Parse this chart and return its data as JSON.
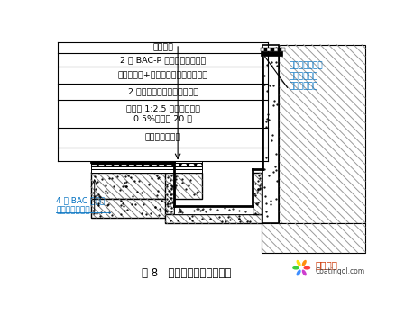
{
  "title": "图 8   裙楼屋面天沟防水构造",
  "label_rain": "雨水篦子",
  "label_bac_p": "2 厚 BAC-P 双面自粘防水卷材",
  "label_glass": "玻纤网格布+非固化橡胶沥青防水涂料",
  "label_2thick": "2 厚非固化橡胶沥青防水涂料",
  "label_cement": "天沟底 1:2.5 水泥砂浆找坡\n0.5%，最薄 20 厚",
  "label_steel": "钢筋混凝土天沟",
  "label_right": "收口压条固定，\n涂非固化橡胶\n沥青防水涂料",
  "label_bac4": "4 厚 BAC 耐根穿\n刺自粘防水卷材",
  "watermark_cn": "涂料在线",
  "watermark_en": "Coatingol.com",
  "blue": "#0070c0",
  "black": "#000000",
  "white": "#ffffff",
  "petal_colors": [
    "#ff3333",
    "#ff8800",
    "#ffdd00",
    "#33cc33",
    "#3388ff",
    "#cc33cc"
  ]
}
